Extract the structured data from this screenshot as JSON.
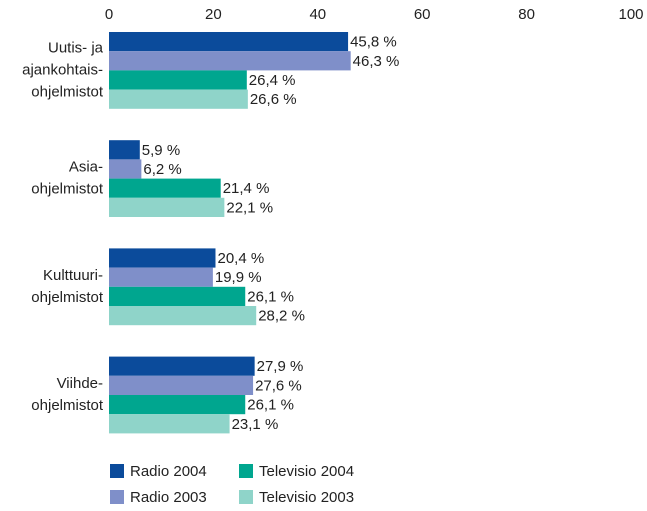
{
  "chart_data": {
    "type": "bar",
    "orientation": "horizontal",
    "categories": [
      [
        "Uutis- ja",
        "ajankohtais-",
        "ohjelmistot"
      ],
      [
        "Asia-",
        "ohjelmistot"
      ],
      [
        "Kulttuuri-",
        "ohjelmistot"
      ],
      [
        "Viihde-",
        "ohjelmistot"
      ]
    ],
    "series": [
      {
        "name": "Radio 2004",
        "color": "#0b4b9b",
        "values": [
          45.8,
          5.9,
          20.4,
          27.9
        ],
        "value_labels": [
          "45,8 %",
          "5,9 %",
          "20,4 %",
          "27,9 %"
        ]
      },
      {
        "name": "Radio 2003",
        "color": "#7f8fc9",
        "values": [
          46.3,
          6.2,
          19.9,
          27.6
        ],
        "value_labels": [
          "46,3 %",
          "6,2 %",
          "19,9 %",
          "27,6 %"
        ]
      },
      {
        "name": "Televisio 2004",
        "color": "#00a68f",
        "values": [
          26.4,
          21.4,
          26.1,
          26.1
        ],
        "value_labels": [
          "26,4 %",
          "21,4 %",
          "26,1 %",
          "26,1 %"
        ]
      },
      {
        "name": "Televisio 2003",
        "color": "#8fd4c9",
        "values": [
          26.6,
          22.1,
          28.2,
          23.1
        ],
        "value_labels": [
          "26,6 %",
          "22,1 %",
          "28,2 %",
          "23,1 %"
        ]
      }
    ],
    "xlim": [
      0,
      100
    ],
    "xticks": [
      0,
      20,
      40,
      60,
      80,
      100
    ],
    "grid": false,
    "legend": "bottom"
  }
}
